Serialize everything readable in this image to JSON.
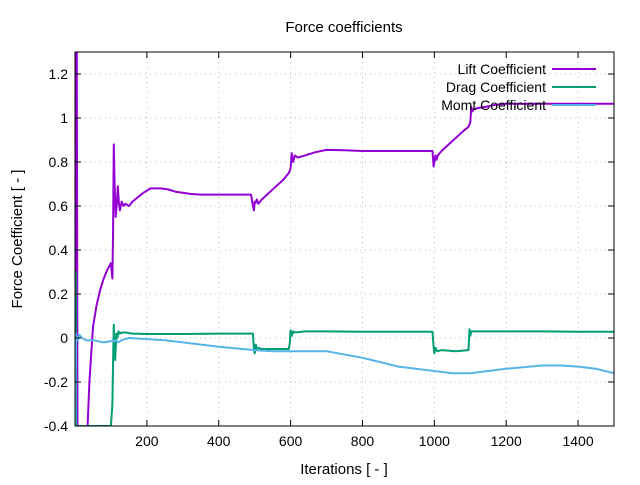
{
  "chart_data": {
    "type": "line",
    "title": "Force coefficients",
    "xlabel": "Iterations [ - ]",
    "ylabel": "Force Coefficient [ - ]",
    "xlim": [
      0,
      1500
    ],
    "ylim": [
      -0.4,
      1.3
    ],
    "grid": true,
    "legend_position": "top-right",
    "x_ticks": [
      200,
      400,
      600,
      800,
      1000,
      1200,
      1400
    ],
    "x_tick_labels": [
      "200",
      "400",
      "600",
      "800",
      "1000",
      "1200",
      "1400"
    ],
    "y_ticks": [
      -0.4,
      -0.2,
      0,
      0.2,
      0.4,
      0.6,
      0.8,
      1,
      1.2
    ],
    "y_tick_labels": [
      "-0.4",
      "-0.2",
      "0",
      "0.2",
      "0.4",
      "0.6",
      "0.8",
      "1",
      "1.2"
    ],
    "series": [
      {
        "name": "Lift Coefficient",
        "color": "#9400d3",
        "x": [
          1,
          2,
          3,
          4,
          5,
          7,
          9,
          12,
          15,
          20,
          25,
          30,
          35,
          40,
          50,
          60,
          70,
          80,
          90,
          100,
          104,
          106,
          108,
          110,
          113,
          116,
          119,
          122,
          125,
          130,
          135,
          140,
          150,
          160,
          175,
          190,
          210,
          240,
          260,
          280,
          300,
          320,
          350,
          400,
          450,
          490,
          495,
          498,
          500,
          503,
          506,
          510,
          520,
          540,
          560,
          580,
          595,
          600,
          603,
          607,
          612,
          620,
          640,
          670,
          700,
          750,
          800,
          850,
          900,
          950,
          995,
          998,
          1000,
          1003,
          1006,
          1010,
          1020,
          1040,
          1060,
          1080,
          1095,
          1100,
          1103,
          1106,
          1110,
          1120,
          1140,
          1170,
          1200,
          1250,
          1300,
          1350,
          1400,
          1450,
          1500
        ],
        "y": [
          1.3,
          -0.4,
          1.3,
          -0.4,
          1.3,
          -0.4,
          -0.4,
          -0.4,
          -0.4,
          -0.4,
          -0.4,
          -0.4,
          -0.4,
          -0.2,
          0.05,
          0.15,
          0.22,
          0.27,
          0.31,
          0.34,
          0.27,
          0.5,
          0.88,
          0.72,
          0.55,
          0.6,
          0.69,
          0.62,
          0.58,
          0.62,
          0.6,
          0.61,
          0.6,
          0.62,
          0.64,
          0.66,
          0.68,
          0.68,
          0.675,
          0.665,
          0.66,
          0.655,
          0.652,
          0.652,
          0.652,
          0.652,
          0.6,
          0.58,
          0.62,
          0.615,
          0.63,
          0.61,
          0.63,
          0.66,
          0.69,
          0.72,
          0.75,
          0.77,
          0.84,
          0.8,
          0.83,
          0.82,
          0.83,
          0.845,
          0.855,
          0.853,
          0.85,
          0.85,
          0.85,
          0.85,
          0.85,
          0.78,
          0.8,
          0.83,
          0.81,
          0.83,
          0.85,
          0.88,
          0.91,
          0.94,
          0.96,
          0.98,
          1.05,
          1.03,
          1.04,
          1.045,
          1.05,
          1.06,
          1.065,
          1.065,
          1.065,
          1.065,
          1.065,
          1.065,
          1.065
        ]
      },
      {
        "name": "Drag Coefficient",
        "color": "#009e73",
        "x": [
          1,
          2,
          3,
          4,
          5,
          7,
          10,
          20,
          40,
          60,
          80,
          100,
          104,
          106,
          108,
          110,
          112,
          115,
          118,
          121,
          125,
          130,
          140,
          160,
          200,
          250,
          300,
          400,
          495,
          498,
          500,
          503,
          507,
          512,
          520,
          560,
          595,
          598,
          600,
          603,
          607,
          612,
          640,
          700,
          800,
          900,
          995,
          998,
          1000,
          1003,
          1008,
          1020,
          1060,
          1095,
          1098,
          1100,
          1103,
          1110,
          1200,
          1300,
          1400,
          1500
        ],
        "y": [
          -0.4,
          0.3,
          -0.4,
          -0.4,
          -0.4,
          -0.4,
          -0.4,
          -0.4,
          -0.4,
          -0.4,
          -0.4,
          -0.4,
          -0.3,
          -0.1,
          0.06,
          -0.05,
          -0.1,
          0.02,
          0.0,
          0.03,
          0.02,
          0.025,
          0.025,
          0.02,
          0.018,
          0.018,
          0.018,
          0.02,
          0.02,
          -0.05,
          -0.07,
          -0.03,
          -0.05,
          -0.045,
          -0.05,
          -0.05,
          -0.05,
          -0.02,
          0.035,
          0.01,
          0.03,
          0.025,
          0.03,
          0.03,
          0.028,
          0.028,
          0.028,
          -0.04,
          -0.07,
          -0.045,
          -0.06,
          -0.055,
          -0.06,
          -0.055,
          0.04,
          0.01,
          0.03,
          0.03,
          0.03,
          0.03,
          0.028,
          0.028
        ]
      },
      {
        "name": "Momt Coefficient",
        "color": "#56b4e9",
        "x": [
          1,
          3,
          5,
          8,
          12,
          20,
          30,
          50,
          80,
          100,
          105,
          110,
          115,
          120,
          125,
          130,
          150,
          200,
          250,
          300,
          400,
          500,
          550,
          600,
          700,
          800,
          900,
          1000,
          1050,
          1100,
          1200,
          1300,
          1350,
          1400,
          1450,
          1500
        ],
        "y": [
          -0.4,
          0.02,
          0.0,
          -0.01,
          0.015,
          0.0,
          -0.01,
          -0.01,
          -0.02,
          -0.015,
          -0.01,
          -0.015,
          -0.01,
          -0.02,
          -0.015,
          -0.01,
          0.0,
          -0.005,
          -0.01,
          -0.02,
          -0.04,
          -0.055,
          -0.06,
          -0.06,
          -0.06,
          -0.09,
          -0.13,
          -0.15,
          -0.16,
          -0.16,
          -0.14,
          -0.125,
          -0.125,
          -0.13,
          -0.14,
          -0.16
        ]
      }
    ]
  }
}
